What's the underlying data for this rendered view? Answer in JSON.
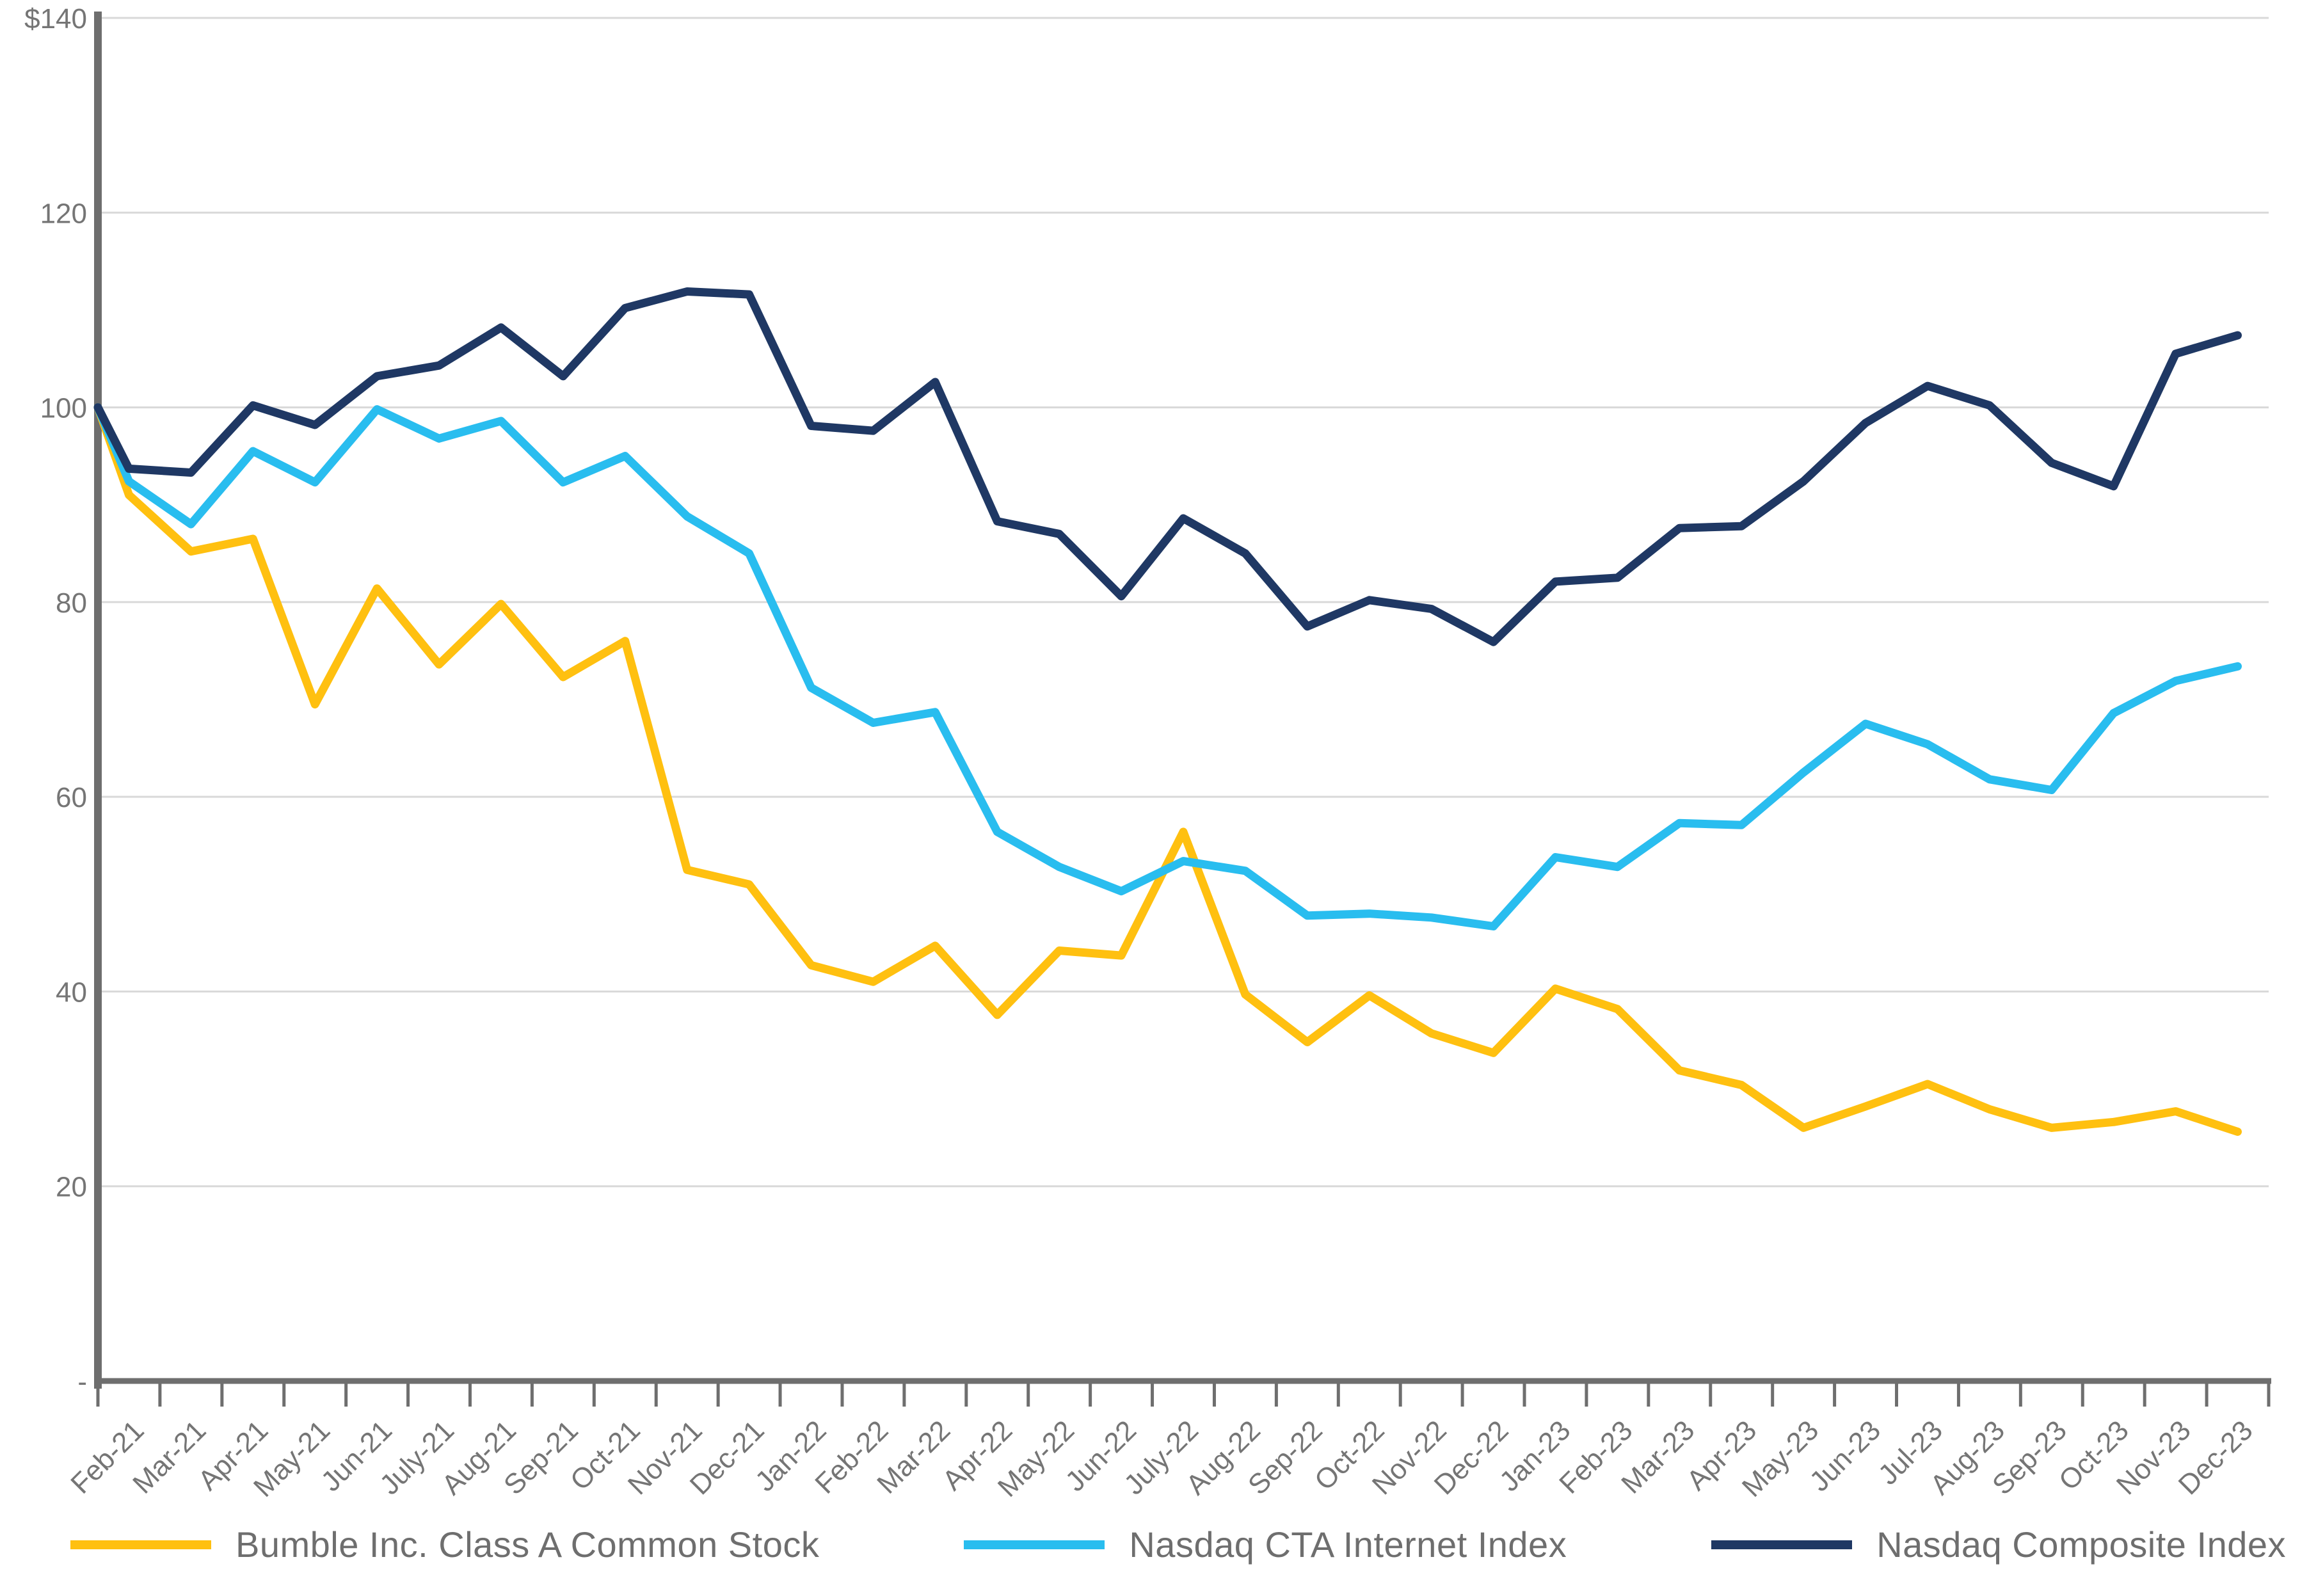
{
  "chart_data": {
    "type": "line",
    "title": "",
    "grid": true,
    "legend_position": "bottom",
    "y_axis": {
      "min": 0,
      "max": 140,
      "step": 20,
      "ticks": [
        {
          "label": "$140",
          "value": 140
        },
        {
          "label": "120",
          "value": 120
        },
        {
          "label": "100",
          "value": 100
        },
        {
          "label": "80",
          "value": 80
        },
        {
          "label": "60",
          "value": 60
        },
        {
          "label": "40",
          "value": 40
        },
        {
          "label": "20",
          "value": 20
        },
        {
          "label": "-",
          "value": 0
        }
      ]
    },
    "x_labels": [
      "Feb-21",
      "Mar-21",
      "Apr-21",
      "May-21",
      "Jun-21",
      "July-21",
      "Aug-21",
      "Sep-21",
      "Oct-21",
      "Nov-21",
      "Dec-21",
      "Jan-22",
      "Feb-22",
      "Mar-22",
      "Apr-22",
      "May-22",
      "Jun-22",
      "July-22",
      "Aug-22",
      "Sep-22",
      "Oct-22",
      "Nov-22",
      "Dec-22",
      "Jan-23",
      "Feb-23",
      "Mar-23",
      "Apr-23",
      "May-23",
      "Jun-23",
      "Jul-23",
      "Aug-23",
      "Sep-23",
      "Oct-23",
      "Nov-23",
      "Dec-23"
    ],
    "start_value": 100,
    "series": [
      {
        "name": "Bumble Inc. Class A Common Stock",
        "color": "#FFC010",
        "values": [
          100,
          91.0,
          85.2,
          86.5,
          69.5,
          81.4,
          73.6,
          79.8,
          72.3,
          76.0,
          52.5,
          51.0,
          42.7,
          41.0,
          44.7,
          37.6,
          44.2,
          43.7,
          56.4,
          39.7,
          34.8,
          39.6,
          35.7,
          33.7,
          40.3,
          38.2,
          31.9,
          30.4,
          26.0,
          28.2,
          30.5,
          27.9,
          26.0,
          26.6,
          27.7,
          25.6
        ]
      },
      {
        "name": "Nasdaq CTA Internet Index",
        "color": "#29BDEF",
        "values": [
          100,
          92.4,
          88.0,
          95.5,
          92.3,
          99.8,
          96.8,
          98.6,
          92.3,
          95.0,
          88.8,
          85.0,
          71.2,
          67.6,
          68.7,
          56.4,
          52.8,
          50.3,
          53.4,
          52.4,
          47.8,
          48.0,
          47.6,
          46.7,
          53.8,
          52.8,
          57.3,
          57.1,
          62.5,
          67.5,
          65.4,
          61.8,
          60.7,
          68.6,
          71.9,
          73.4
        ]
      },
      {
        "name": "Nasdaq Composite Index",
        "color": "#1F3864",
        "values": [
          100,
          93.7,
          93.3,
          100.2,
          98.2,
          103.2,
          104.3,
          108.2,
          103.2,
          110.2,
          111.9,
          111.6,
          98.1,
          97.6,
          102.6,
          88.3,
          87.0,
          80.6,
          88.6,
          85.0,
          77.5,
          80.2,
          79.3,
          75.9,
          82.1,
          82.5,
          87.6,
          87.8,
          92.4,
          98.4,
          102.2,
          100.2,
          94.3,
          91.9,
          105.5,
          107.4
        ]
      }
    ],
    "axis_color": "#6E6E6E",
    "gridline_color": "#D9D9D9"
  }
}
